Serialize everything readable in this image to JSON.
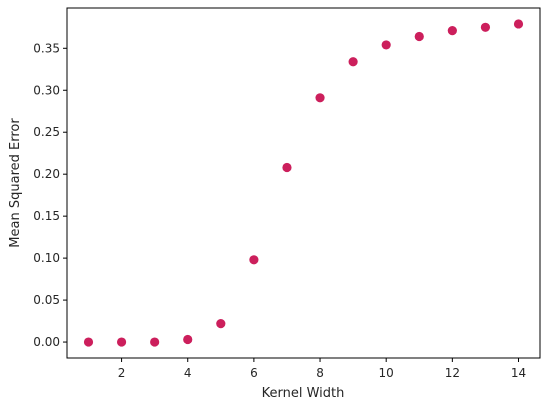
{
  "chart_data": {
    "type": "scatter",
    "title": "",
    "xlabel": "Kernel Width",
    "ylabel": "Mean Squared Error",
    "xlim": [
      0.35,
      14.65
    ],
    "ylim": [
      -0.019,
      0.398
    ],
    "xticks": [
      2,
      4,
      6,
      8,
      10,
      12,
      14
    ],
    "xtick_labels": [
      "2",
      "4",
      "6",
      "8",
      "10",
      "12",
      "14"
    ],
    "yticks": [
      0.0,
      0.05,
      0.1,
      0.15,
      0.2,
      0.25,
      0.3,
      0.35
    ],
    "ytick_labels": [
      "0.00",
      "0.05",
      "0.10",
      "0.15",
      "0.20",
      "0.25",
      "0.30",
      "0.35"
    ],
    "grid": false,
    "marker_color": "#cc1f5c",
    "series": [
      {
        "x": [
          1,
          2,
          3,
          4,
          5,
          6,
          7,
          8,
          9,
          10,
          11,
          12,
          13,
          14
        ],
        "y": [
          0.0,
          0.0,
          0.0,
          0.003,
          0.022,
          0.098,
          0.208,
          0.291,
          0.334,
          0.354,
          0.364,
          0.371,
          0.375,
          0.379
        ]
      }
    ]
  }
}
